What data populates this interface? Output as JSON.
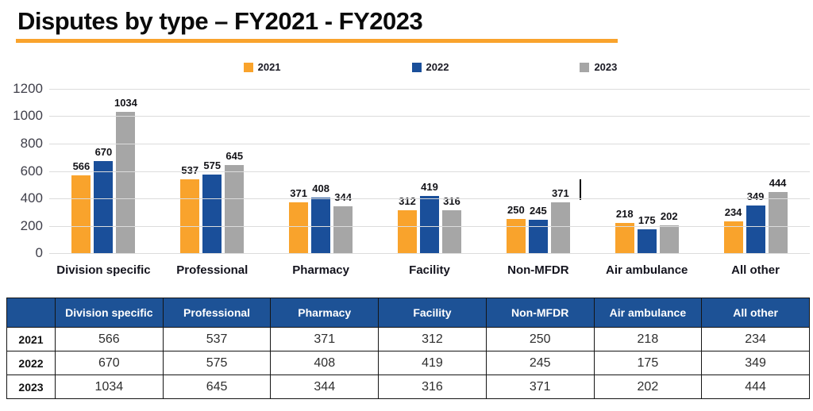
{
  "title": "Disputes by type – FY2021 - FY2023",
  "colors": {
    "accent_orange": "#F9A32C",
    "accent_blue": "#1A4F9A",
    "accent_gray": "#A6A6A6",
    "table_header_blue": "#1D5296",
    "gridline": "#DCDCDC",
    "title_underline": "#F9A32C"
  },
  "chart_data": {
    "type": "bar",
    "title": "Disputes by type – FY2021 - FY2023",
    "categories": [
      "Division specific",
      "Professional",
      "Pharmacy",
      "Facility",
      "Non-MFDR",
      "Air ambulance",
      "All other"
    ],
    "series": [
      {
        "name": "2021",
        "color": "#F9A32C",
        "values": [
          566,
          537,
          371,
          312,
          250,
          218,
          234
        ]
      },
      {
        "name": "2022",
        "color": "#1A4F9A",
        "values": [
          670,
          575,
          408,
          419,
          245,
          175,
          349
        ]
      },
      {
        "name": "2023",
        "color": "#A6A6A6",
        "values": [
          1034,
          645,
          344,
          316,
          371,
          202,
          444
        ]
      }
    ],
    "xlabel": "",
    "ylabel": "",
    "ylim": [
      0,
      1200
    ],
    "yticks": [
      0,
      200,
      400,
      600,
      800,
      1000,
      1200
    ],
    "grid": true,
    "legend_position": "top",
    "data_labels": true
  },
  "table": {
    "headers": [
      "",
      "Division specific",
      "Professional",
      "Pharmacy",
      "Facility",
      "Non-MFDR",
      "Air ambulance",
      "All other"
    ],
    "rows": [
      {
        "label": "2021",
        "values": [
          566,
          537,
          371,
          312,
          250,
          218,
          234
        ]
      },
      {
        "label": "2022",
        "values": [
          670,
          575,
          408,
          419,
          245,
          175,
          349
        ]
      },
      {
        "label": "2023",
        "values": [
          1034,
          645,
          344,
          316,
          371,
          202,
          444
        ]
      }
    ]
  }
}
